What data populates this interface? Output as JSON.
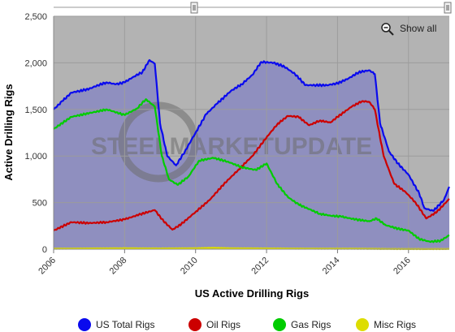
{
  "chart_data": {
    "type": "line",
    "title": "",
    "xlabel": "US Active Drilling Rigs",
    "ylabel": "Active Drilling Rigs",
    "xlim": [
      2006,
      2017.15
    ],
    "ylim": [
      0,
      2500
    ],
    "x_ticks": [
      2006,
      2008,
      2010,
      2012,
      2014,
      2016
    ],
    "x_tick_labels": [
      "2006",
      "2008",
      "2010",
      "2012",
      "2014",
      "2016"
    ],
    "y_ticks": [
      0,
      500,
      1000,
      1500,
      2000,
      2500
    ],
    "y_tick_labels": [
      "0",
      "500",
      "1,000",
      "1,500",
      "2,000",
      "2,500"
    ],
    "grid": true,
    "legend_position": "bottom",
    "show_all_label": "Show all",
    "watermark": "STEELMARKETUPDATE",
    "series": [
      {
        "name": "US Total Rigs",
        "color": "#0a0aee",
        "x": [
          2006.0,
          2006.25,
          2006.5,
          2006.75,
          2007.0,
          2007.25,
          2007.5,
          2007.75,
          2008.0,
          2008.25,
          2008.5,
          2008.7,
          2008.85,
          2009.0,
          2009.2,
          2009.45,
          2009.7,
          2010.0,
          2010.3,
          2010.6,
          2011.0,
          2011.3,
          2011.6,
          2011.85,
          2012.2,
          2012.5,
          2012.8,
          2013.1,
          2013.4,
          2013.7,
          2014.0,
          2014.3,
          2014.6,
          2014.9,
          2015.05,
          2015.2,
          2015.45,
          2015.7,
          2016.0,
          2016.3,
          2016.45,
          2016.7,
          2017.0,
          2017.15
        ],
        "values": [
          1500,
          1590,
          1680,
          1700,
          1720,
          1760,
          1790,
          1770,
          1790,
          1850,
          1900,
          2030,
          1990,
          1350,
          1000,
          900,
          1050,
          1250,
          1450,
          1560,
          1700,
          1770,
          1870,
          2010,
          2000,
          1960,
          1880,
          1760,
          1760,
          1760,
          1780,
          1830,
          1900,
          1920,
          1880,
          1350,
          1050,
          920,
          800,
          600,
          440,
          410,
          530,
          670
        ]
      },
      {
        "name": "Oil Rigs",
        "color": "#cc0000",
        "x": [
          2006.0,
          2006.5,
          2007.0,
          2007.5,
          2008.0,
          2008.4,
          2008.85,
          2009.1,
          2009.35,
          2009.6,
          2010.0,
          2010.4,
          2010.8,
          2011.2,
          2011.6,
          2012.0,
          2012.3,
          2012.6,
          2012.9,
          2013.2,
          2013.5,
          2013.8,
          2014.0,
          2014.4,
          2014.7,
          2014.9,
          2015.05,
          2015.3,
          2015.6,
          2015.9,
          2016.2,
          2016.5,
          2016.8,
          2017.15
        ],
        "values": [
          200,
          290,
          280,
          290,
          320,
          370,
          420,
          300,
          210,
          270,
          400,
          530,
          700,
          850,
          1000,
          1200,
          1340,
          1430,
          1420,
          1330,
          1380,
          1360,
          1420,
          1530,
          1590,
          1580,
          1500,
          1000,
          700,
          620,
          500,
          330,
          400,
          540
        ]
      },
      {
        "name": "Gas Rigs",
        "color": "#00cc00",
        "x": [
          2006.0,
          2006.5,
          2007.0,
          2007.5,
          2008.0,
          2008.35,
          2008.6,
          2008.85,
          2009.05,
          2009.25,
          2009.5,
          2009.8,
          2010.1,
          2010.5,
          2010.9,
          2011.3,
          2011.7,
          2012.0,
          2012.3,
          2012.6,
          2012.9,
          2013.2,
          2013.5,
          2013.8,
          2014.1,
          2014.5,
          2014.9,
          2015.1,
          2015.35,
          2015.7,
          2016.0,
          2016.3,
          2016.6,
          2016.9,
          2017.15
        ],
        "values": [
          1290,
          1420,
          1460,
          1500,
          1440,
          1510,
          1610,
          1530,
          1000,
          750,
          690,
          780,
          950,
          980,
          940,
          880,
          850,
          920,
          700,
          560,
          480,
          430,
          380,
          360,
          350,
          320,
          300,
          330,
          260,
          220,
          200,
          110,
          80,
          90,
          150
        ]
      },
      {
        "name": "Misc Rigs",
        "color": "#dddd00",
        "x": [
          2006.0,
          2007.0,
          2008.0,
          2009.0,
          2010.0,
          2010.5,
          2011.0,
          2012.0,
          2013.0,
          2014.0,
          2014.5,
          2015.0,
          2015.5,
          2016.0,
          2016.5,
          2017.15
        ],
        "values": [
          5,
          8,
          10,
          8,
          10,
          15,
          10,
          8,
          6,
          5,
          5,
          4,
          2,
          2,
          1,
          2
        ]
      }
    ]
  }
}
